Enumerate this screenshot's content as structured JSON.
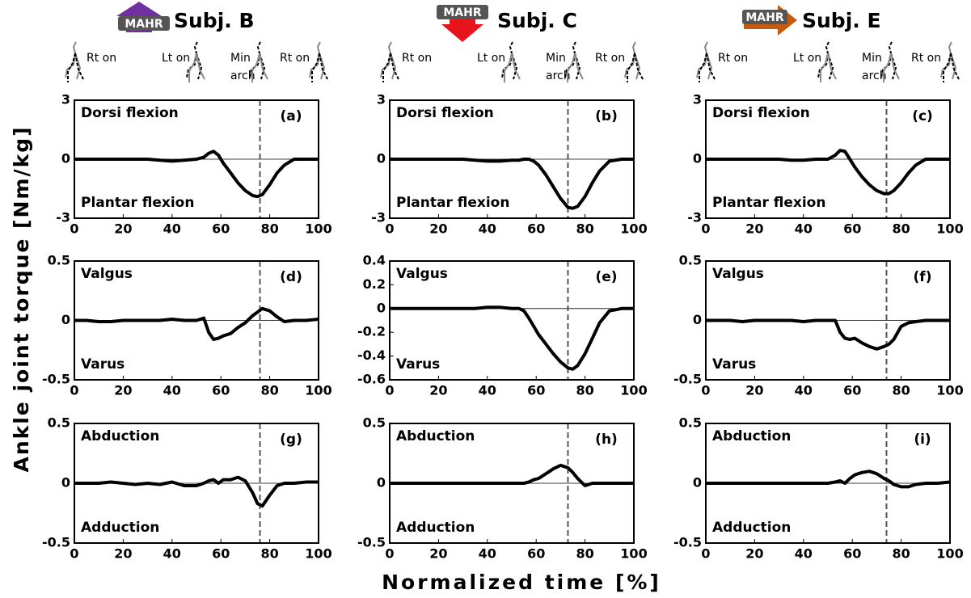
{
  "header": {
    "columns": [
      {
        "badge": "MAHR",
        "title": "Subj. B",
        "events": [
          "Rt on",
          "Lt on",
          "Min",
          "arch",
          "Rt on"
        ]
      },
      {
        "badge": "MAHR",
        "title": "Subj. C",
        "events": [
          "Rt on",
          "Lt on",
          "Min",
          "arch",
          "Rt on"
        ]
      },
      {
        "badge": "MAHR",
        "title": "Subj. E",
        "events": [
          "Rt on",
          "Lt on",
          "Min",
          "arch",
          "Rt on"
        ]
      }
    ]
  },
  "y_axis_label": "Ankle joint torque [Nm/kg]",
  "x_axis_label": "Normalized time [%]",
  "chart_data": [
    {
      "type": "line",
      "label": "(a)",
      "annotations": [
        "Dorsi flexion",
        "Plantar flexion"
      ],
      "xlim": [
        0,
        100
      ],
      "xticks": [
        0,
        20,
        40,
        60,
        80,
        100
      ],
      "ylim": [
        -3,
        3
      ],
      "yticks": [
        -3,
        0,
        3
      ],
      "vline": 76,
      "x": [
        0,
        5,
        10,
        15,
        20,
        25,
        30,
        35,
        40,
        45,
        50,
        53,
        55,
        57,
        59,
        61,
        64,
        67,
        70,
        73,
        75,
        77,
        80,
        83,
        86,
        90,
        95,
        100
      ],
      "series": [
        {
          "color": "#000000",
          "values": [
            0,
            0,
            0,
            0,
            0,
            0,
            0,
            -0.05,
            -0.1,
            -0.05,
            0,
            0.1,
            0.3,
            0.4,
            0.2,
            -0.2,
            -0.7,
            -1.2,
            -1.6,
            -1.85,
            -1.9,
            -1.8,
            -1.3,
            -0.7,
            -0.3,
            0,
            0,
            0
          ]
        }
      ]
    },
    {
      "type": "line",
      "label": "(b)",
      "annotations": [
        "Dorsi flexion",
        "Plantar flexion"
      ],
      "xlim": [
        0,
        100
      ],
      "xticks": [
        0,
        20,
        40,
        60,
        80,
        100
      ],
      "ylim": [
        -3,
        3
      ],
      "yticks": [
        -3,
        0,
        3
      ],
      "vline": 73,
      "x": [
        0,
        5,
        10,
        15,
        20,
        25,
        30,
        35,
        40,
        45,
        50,
        53,
        55,
        57,
        59,
        61,
        64,
        67,
        70,
        73,
        75,
        77,
        80,
        83,
        86,
        90,
        95,
        100
      ],
      "series": [
        {
          "color": "#000000",
          "values": [
            0,
            0,
            0,
            0,
            0,
            0,
            0,
            -0.05,
            -0.1,
            -0.1,
            -0.05,
            -0.05,
            0,
            0,
            -0.1,
            -0.3,
            -0.8,
            -1.4,
            -2.0,
            -2.45,
            -2.5,
            -2.4,
            -1.9,
            -1.2,
            -0.6,
            -0.1,
            0,
            0
          ]
        }
      ]
    },
    {
      "type": "line",
      "label": "(c)",
      "annotations": [
        "Dorsi flexion",
        "Plantar flexion"
      ],
      "xlim": [
        0,
        100
      ],
      "xticks": [
        0,
        20,
        40,
        60,
        80,
        100
      ],
      "ylim": [
        -3,
        3
      ],
      "yticks": [
        -3,
        0,
        3
      ],
      "vline": 74,
      "x": [
        0,
        5,
        10,
        15,
        20,
        25,
        30,
        35,
        40,
        45,
        50,
        53,
        55,
        57,
        59,
        61,
        64,
        67,
        70,
        73,
        75,
        77,
        80,
        83,
        86,
        90,
        95,
        100
      ],
      "series": [
        {
          "color": "#000000",
          "values": [
            0,
            0,
            0,
            0,
            0,
            0,
            0,
            -0.05,
            -0.05,
            0,
            0,
            0.2,
            0.45,
            0.4,
            0,
            -0.4,
            -0.9,
            -1.3,
            -1.6,
            -1.75,
            -1.75,
            -1.6,
            -1.2,
            -0.7,
            -0.3,
            0,
            0,
            0
          ]
        }
      ]
    },
    {
      "type": "line",
      "label": "(d)",
      "annotations": [
        "Valgus",
        "Varus"
      ],
      "xlim": [
        0,
        100
      ],
      "xticks": [
        0,
        20,
        40,
        60,
        80,
        100
      ],
      "ylim": [
        -0.5,
        0.5
      ],
      "yticks": [
        -0.5,
        0,
        0.5
      ],
      "vline": 76,
      "x": [
        0,
        5,
        10,
        15,
        20,
        25,
        30,
        35,
        40,
        45,
        50,
        53,
        55,
        57,
        59,
        61,
        64,
        67,
        70,
        73,
        75,
        77,
        80,
        83,
        86,
        90,
        95,
        100
      ],
      "series": [
        {
          "color": "#000000",
          "values": [
            0,
            0,
            -0.01,
            -0.01,
            0,
            0,
            0,
            0,
            0.01,
            0,
            0,
            0.02,
            -0.1,
            -0.16,
            -0.15,
            -0.13,
            -0.11,
            -0.06,
            -0.02,
            0.04,
            0.07,
            0.1,
            0.08,
            0.03,
            -0.01,
            0,
            0,
            0.01
          ]
        }
      ]
    },
    {
      "type": "line",
      "label": "(e)",
      "annotations": [
        "Valgus",
        "Varus"
      ],
      "xlim": [
        0,
        100
      ],
      "xticks": [
        0,
        20,
        40,
        60,
        80,
        100
      ],
      "ylim": [
        -0.6,
        0.4
      ],
      "yticks": [
        -0.6,
        -0.4,
        -0.2,
        0,
        0.2,
        0.4
      ],
      "vline": 73,
      "x": [
        0,
        5,
        10,
        15,
        20,
        25,
        30,
        35,
        40,
        45,
        50,
        53,
        55,
        57,
        59,
        61,
        64,
        67,
        70,
        73,
        75,
        77,
        80,
        83,
        86,
        90,
        95,
        100
      ],
      "series": [
        {
          "color": "#000000",
          "values": [
            0,
            0,
            0,
            0,
            0,
            0,
            0,
            0,
            0.01,
            0.01,
            0,
            0,
            -0.02,
            -0.08,
            -0.15,
            -0.22,
            -0.3,
            -0.38,
            -0.45,
            -0.5,
            -0.51,
            -0.48,
            -0.38,
            -0.25,
            -0.12,
            -0.02,
            0,
            0
          ]
        }
      ]
    },
    {
      "type": "line",
      "label": "(f)",
      "annotations": [
        "Valgus",
        "Varus"
      ],
      "xlim": [
        0,
        100
      ],
      "xticks": [
        0,
        20,
        40,
        60,
        80,
        100
      ],
      "ylim": [
        -0.5,
        0.5
      ],
      "yticks": [
        -0.5,
        0,
        0.5
      ],
      "vline": 74,
      "x": [
        0,
        5,
        10,
        15,
        20,
        25,
        30,
        35,
        40,
        45,
        50,
        53,
        55,
        57,
        59,
        61,
        64,
        67,
        70,
        73,
        75,
        77,
        80,
        83,
        86,
        90,
        95,
        100
      ],
      "series": [
        {
          "color": "#000000",
          "values": [
            0,
            0,
            0,
            -0.01,
            0,
            0,
            0,
            0,
            -0.01,
            0,
            0,
            0,
            -0.1,
            -0.15,
            -0.16,
            -0.15,
            -0.19,
            -0.22,
            -0.24,
            -0.22,
            -0.2,
            -0.16,
            -0.05,
            -0.02,
            -0.01,
            0,
            0,
            0
          ]
        }
      ]
    },
    {
      "type": "line",
      "label": "(g)",
      "annotations": [
        "Abduction",
        "Adduction"
      ],
      "xlim": [
        0,
        100
      ],
      "xticks": [
        0,
        20,
        40,
        60,
        80,
        100
      ],
      "ylim": [
        -0.5,
        0.5
      ],
      "yticks": [
        -0.5,
        0,
        0.5
      ],
      "vline": 76,
      "x": [
        0,
        5,
        10,
        15,
        20,
        25,
        30,
        35,
        40,
        45,
        50,
        53,
        55,
        57,
        59,
        61,
        64,
        67,
        70,
        73,
        75,
        77,
        80,
        83,
        86,
        90,
        95,
        100
      ],
      "series": [
        {
          "color": "#000000",
          "values": [
            0,
            0,
            0,
            0.01,
            0,
            -0.01,
            0,
            -0.01,
            0.01,
            -0.02,
            -0.02,
            0,
            0.02,
            0.03,
            0,
            0.03,
            0.03,
            0.05,
            0.02,
            -0.08,
            -0.17,
            -0.19,
            -0.1,
            -0.02,
            0,
            0,
            0.01,
            0.01
          ]
        }
      ]
    },
    {
      "type": "line",
      "label": "(h)",
      "annotations": [
        "Abduction",
        "Adduction"
      ],
      "xlim": [
        0,
        100
      ],
      "xticks": [
        0,
        20,
        40,
        60,
        80,
        100
      ],
      "ylim": [
        -0.5,
        0.5
      ],
      "yticks": [
        -0.5,
        0,
        0.5
      ],
      "vline": 73,
      "x": [
        0,
        5,
        10,
        15,
        20,
        25,
        30,
        35,
        40,
        45,
        50,
        53,
        55,
        57,
        59,
        61,
        64,
        67,
        70,
        73,
        75,
        77,
        80,
        83,
        86,
        90,
        95,
        100
      ],
      "series": [
        {
          "color": "#000000",
          "values": [
            0,
            0,
            0,
            0,
            0,
            0,
            0,
            0,
            0,
            0,
            0,
            0,
            0,
            0.01,
            0.03,
            0.04,
            0.08,
            0.12,
            0.15,
            0.13,
            0.09,
            0.04,
            -0.02,
            0,
            0,
            0,
            0,
            0
          ]
        }
      ]
    },
    {
      "type": "line",
      "label": "(i)",
      "annotations": [
        "Abduction",
        "Adduction"
      ],
      "xlim": [
        0,
        100
      ],
      "xticks": [
        0,
        20,
        40,
        60,
        80,
        100
      ],
      "ylim": [
        -0.5,
        0.5
      ],
      "yticks": [
        -0.5,
        0,
        0.5
      ],
      "vline": 74,
      "x": [
        0,
        5,
        10,
        15,
        20,
        25,
        30,
        35,
        40,
        45,
        50,
        53,
        55,
        57,
        59,
        61,
        64,
        67,
        70,
        73,
        75,
        77,
        80,
        83,
        86,
        90,
        95,
        100
      ],
      "series": [
        {
          "color": "#000000",
          "values": [
            0,
            0,
            0,
            0,
            0,
            0,
            0,
            0,
            0,
            0,
            0,
            0.01,
            0.02,
            0,
            0.04,
            0.07,
            0.09,
            0.1,
            0.08,
            0.04,
            0.02,
            -0.01,
            -0.03,
            -0.03,
            -0.01,
            0,
            0,
            0.01
          ]
        }
      ]
    }
  ]
}
